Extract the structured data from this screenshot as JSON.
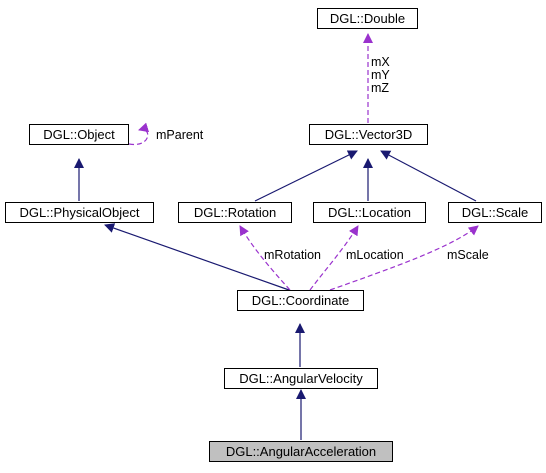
{
  "colors": {
    "inheritance": "#191970",
    "member": "#9a32cd",
    "current_fill": "#c0c0c0",
    "node_fill": "#ffffff",
    "border": "#000000"
  },
  "nodes": {
    "double": "DGL::Double",
    "vector3d": "DGL::Vector3D",
    "object": "DGL::Object",
    "physical_object": "DGL::PhysicalObject",
    "rotation": "DGL::Rotation",
    "location": "DGL::Location",
    "scale": "DGL::Scale",
    "coordinate": "DGL::Coordinate",
    "angular_velocity": "DGL::AngularVelocity",
    "angular_acceleration": "DGL::AngularAcceleration"
  },
  "edge_labels": {
    "double_members": [
      "mX",
      "mY",
      "mZ"
    ],
    "parent": "mParent",
    "rotation": "mRotation",
    "location": "mLocation",
    "scale": "mScale"
  }
}
